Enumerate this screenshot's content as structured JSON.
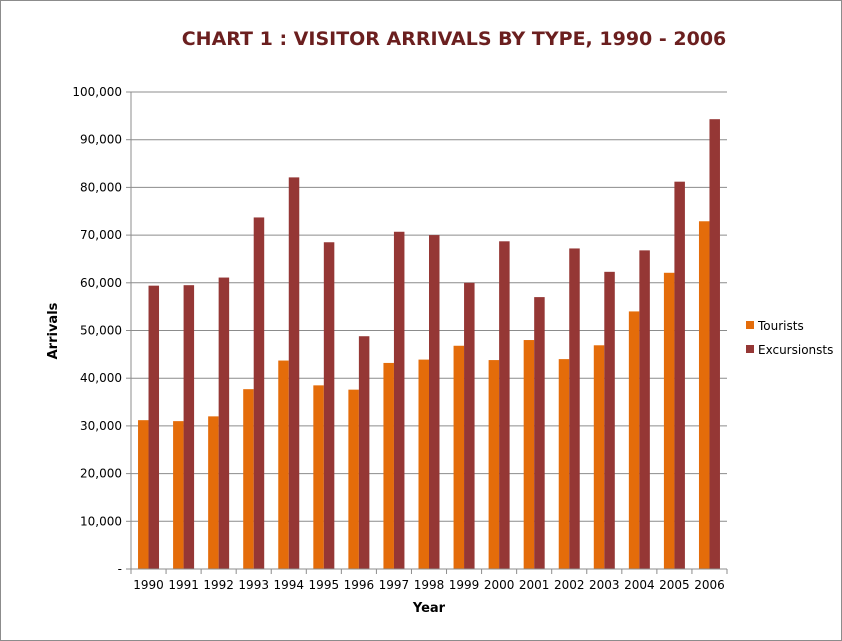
{
  "chart_data": {
    "type": "bar",
    "title": "CHART 1 : VISITOR ARRIVALS BY TYPE, 1990 - 2006",
    "xlabel": "Year",
    "ylabel": "Arrivals",
    "ylim": [
      0,
      100000
    ],
    "y_ticks": [
      0,
      10000,
      20000,
      30000,
      40000,
      50000,
      60000,
      70000,
      80000,
      90000,
      100000
    ],
    "y_tick_labels": [
      "-",
      "10,000",
      "20,000",
      "30,000",
      "40,000",
      "50,000",
      "60,000",
      "70,000",
      "80,000",
      "90,000",
      "100,000"
    ],
    "categories": [
      "1990",
      "1991",
      "1992",
      "1993",
      "1994",
      "1995",
      "1996",
      "1997",
      "1998",
      "1999",
      "2000",
      "2001",
      "2002",
      "2003",
      "2004",
      "2005",
      "2006"
    ],
    "series": [
      {
        "name": "Tourists",
        "color": "#e46c0a",
        "values": [
          31200,
          31000,
          32000,
          37700,
          43700,
          38500,
          37600,
          43200,
          43900,
          46800,
          43800,
          48000,
          44000,
          46900,
          54000,
          62100,
          72900
        ]
      },
      {
        "name": "Excursionsts",
        "color": "#953735",
        "values": [
          59400,
          59500,
          61100,
          73700,
          82100,
          68500,
          48800,
          70700,
          70000,
          60000,
          68700,
          57000,
          67200,
          62300,
          66800,
          81200,
          94300
        ]
      }
    ],
    "grid": true,
    "legend_position": "right"
  }
}
